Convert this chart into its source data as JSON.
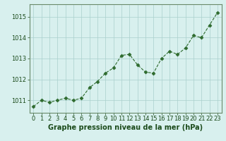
{
  "x": [
    0,
    1,
    2,
    3,
    4,
    5,
    6,
    7,
    8,
    9,
    10,
    11,
    12,
    13,
    14,
    15,
    16,
    17,
    18,
    19,
    20,
    21,
    22,
    23
  ],
  "y": [
    1010.7,
    1011.0,
    1010.9,
    1011.0,
    1011.1,
    1011.0,
    1011.1,
    1011.6,
    1011.9,
    1012.3,
    1012.55,
    1013.15,
    1013.2,
    1012.7,
    1012.35,
    1012.3,
    1013.0,
    1013.35,
    1013.2,
    1013.5,
    1014.1,
    1014.0,
    1014.6,
    1015.2
  ],
  "line_color": "#2d6a2d",
  "marker": "D",
  "marker_size": 2.5,
  "bg_color": "#d8f0ee",
  "grid_color": "#aacfcc",
  "xlabel": "Graphe pression niveau de la mer (hPa)",
  "ylabel": "",
  "xlim": [
    -0.5,
    23.5
  ],
  "ylim": [
    1010.4,
    1015.6
  ],
  "yticks": [
    1011,
    1012,
    1013,
    1014,
    1015
  ],
  "xtick_labels": [
    "0",
    "1",
    "2",
    "3",
    "4",
    "5",
    "6",
    "7",
    "8",
    "9",
    "10",
    "11",
    "12",
    "13",
    "14",
    "15",
    "16",
    "17",
    "18",
    "19",
    "20",
    "21",
    "22",
    "23"
  ],
  "xlabel_fontsize": 7,
  "tick_fontsize": 6,
  "label_color": "#1a4a1a",
  "tick_color": "#1a4a1a",
  "border_color": "#7a9a7a",
  "spine_color": "#6a8a6a"
}
